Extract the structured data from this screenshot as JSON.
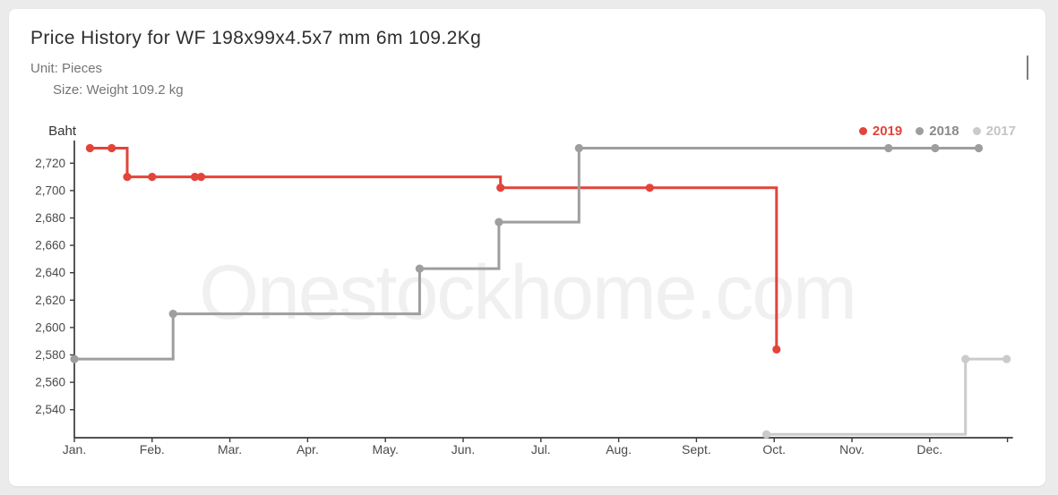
{
  "header": {
    "title": "Price History for WF 198x99x4.5x7 mm 6m 109.2Kg",
    "unit_line": "Unit: Pieces",
    "size_line": "Size: Weight 109.2 kg"
  },
  "watermark": "Onestockhome.com",
  "legend": [
    {
      "label": "2019",
      "color": "#e2443a",
      "text_color": "#e2443a"
    },
    {
      "label": "2018",
      "color": "#9e9e9e",
      "text_color": "#8a8a8a"
    },
    {
      "label": "2017",
      "color": "#cbcbcb",
      "text_color": "#c5c5c5"
    }
  ],
  "chart_data": {
    "type": "line",
    "step": true,
    "title": "Price History for WF 198x99x4.5x7 mm 6m 109.2Kg",
    "y_axis_title": "Baht",
    "y_ticks": [
      2540,
      2560,
      2580,
      2600,
      2620,
      2640,
      2660,
      2680,
      2700,
      2720
    ],
    "ylim": [
      2520,
      2737
    ],
    "x_labels": [
      "Jan.",
      "Feb.",
      "Mar.",
      "Apr.",
      "May.",
      "Jun.",
      "Jul.",
      "Aug.",
      "Sept.",
      "Oct.",
      "Nov.",
      "Dec."
    ],
    "xlim_months": [
      0,
      12.07
    ],
    "grid": false,
    "legend_position": "top-right",
    "axis_color": "#3a3a3a",
    "series": [
      {
        "name": "2019",
        "color": "#e2443a",
        "points": [
          [
            0.2,
            2731
          ],
          [
            0.68,
            2731
          ],
          [
            0.68,
            2710
          ],
          [
            5.48,
            2710
          ],
          [
            5.48,
            2702
          ],
          [
            9.03,
            2702
          ],
          [
            9.03,
            2584
          ]
        ],
        "markers": [
          [
            0.2,
            2731
          ],
          [
            0.48,
            2731
          ],
          [
            0.68,
            2710
          ],
          [
            1.0,
            2710
          ],
          [
            1.55,
            2710
          ],
          [
            1.63,
            2710
          ],
          [
            5.48,
            2702
          ],
          [
            7.4,
            2702
          ],
          [
            9.03,
            2584
          ]
        ]
      },
      {
        "name": "2018",
        "color": "#9e9e9e",
        "points": [
          [
            0,
            2577
          ],
          [
            1.27,
            2577
          ],
          [
            1.27,
            2610
          ],
          [
            4.44,
            2610
          ],
          [
            4.44,
            2643
          ],
          [
            5.46,
            2643
          ],
          [
            5.46,
            2677
          ],
          [
            6.49,
            2677
          ],
          [
            6.49,
            2731
          ],
          [
            11.68,
            2731
          ]
        ],
        "markers": [
          [
            0,
            2577
          ],
          [
            1.27,
            2610
          ],
          [
            4.44,
            2643
          ],
          [
            5.46,
            2677
          ],
          [
            6.49,
            2731
          ],
          [
            10.47,
            2731
          ],
          [
            11.07,
            2731
          ],
          [
            11.63,
            2731
          ]
        ]
      },
      {
        "name": "2017",
        "color": "#cbcbcb",
        "points": [
          [
            8.9,
            2522
          ],
          [
            11.46,
            2522
          ],
          [
            11.46,
            2577
          ],
          [
            11.99,
            2577
          ]
        ],
        "markers": [
          [
            8.9,
            2522
          ],
          [
            11.46,
            2577
          ],
          [
            11.99,
            2577
          ]
        ]
      }
    ]
  }
}
